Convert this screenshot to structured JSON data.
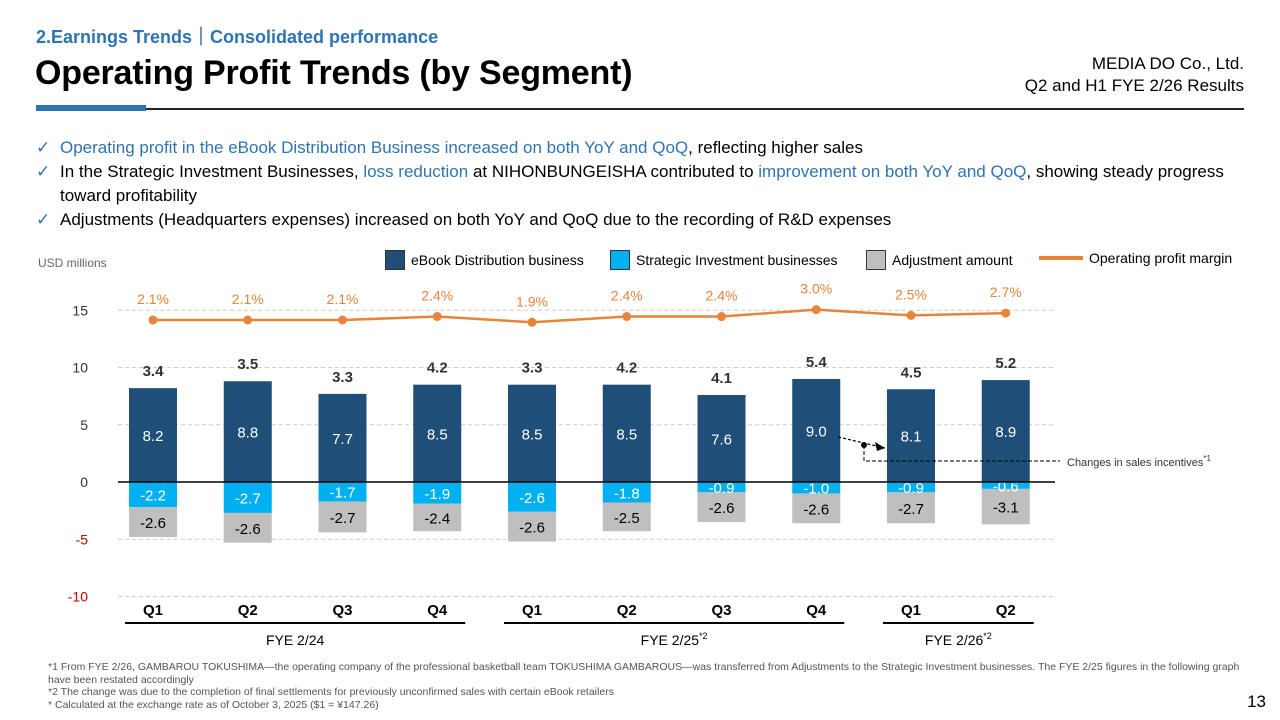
{
  "header": {
    "section": "2.Earnings Trends｜Consolidated performance",
    "title": "Operating Profit Trends (by Segment)",
    "company": "MEDIA DO Co., Ltd.",
    "report": "Q2 and H1 FYE 2/26 Results"
  },
  "bullets": [
    {
      "parts": [
        {
          "text": "Operating profit in the eBook Distribution Business increased on both YoY and QoQ",
          "highlight": true
        },
        {
          "text": ", reflecting higher sales",
          "highlight": false
        }
      ]
    },
    {
      "parts": [
        {
          "text": "In the Strategic Investment Businesses, ",
          "highlight": false
        },
        {
          "text": "loss reduction",
          "highlight": true
        },
        {
          "text": " at NIHONBUNGEISHA contributed to ",
          "highlight": false
        },
        {
          "text": "improvement on both YoY and QoQ",
          "highlight": true
        },
        {
          "text": ", showing steady progress toward profitability",
          "highlight": false
        }
      ]
    },
    {
      "parts": [
        {
          "text": "Adjustments (Headquarters expenses) increased on both YoY and QoQ due to the recording of R&D expenses",
          "highlight": false
        }
      ]
    }
  ],
  "check_icon": "✓",
  "colors": {
    "accent": "#2e74b5",
    "ebook": "#1f4e79",
    "strategic": "#00b0f0",
    "adjustment": "#bfbfbf",
    "margin": "#e8833a",
    "negative_tick": "#c00000"
  },
  "chart_data": {
    "type": "bar",
    "stacked": true,
    "unit_label": "USD millions",
    "categories": [
      "Q1",
      "Q2",
      "Q3",
      "Q4",
      "Q1",
      "Q2",
      "Q3",
      "Q4",
      "Q1",
      "Q2"
    ],
    "groups": [
      {
        "label": "FYE 2/24",
        "sup": "",
        "start": 0,
        "end": 3
      },
      {
        "label": "FYE 2/25",
        "sup": "*2",
        "start": 4,
        "end": 7
      },
      {
        "label": "FYE 2/26",
        "sup": "*2",
        "start": 8,
        "end": 9
      }
    ],
    "series": [
      {
        "name": "eBook Distribution business",
        "key": "ebook",
        "values": [
          8.2,
          8.8,
          7.7,
          8.5,
          8.5,
          8.5,
          7.6,
          9.0,
          8.1,
          8.9
        ]
      },
      {
        "name": "Strategic Investment businesses",
        "key": "strategic",
        "values": [
          -2.2,
          -2.7,
          -1.7,
          -1.9,
          -2.6,
          -1.8,
          -0.9,
          -1.0,
          -0.9,
          -0.6
        ]
      },
      {
        "name": "Adjustment amount",
        "key": "adjustment",
        "values": [
          -2.6,
          -2.6,
          -2.7,
          -2.4,
          -2.6,
          -2.5,
          -2.6,
          -2.6,
          -2.7,
          -3.1
        ]
      }
    ],
    "totals": [
      3.4,
      3.5,
      3.3,
      4.2,
      3.3,
      4.2,
      4.1,
      5.4,
      4.5,
      5.2
    ],
    "line_series": {
      "name": "Operating profit margin",
      "values": [
        2.1,
        2.1,
        2.1,
        2.4,
        1.9,
        2.4,
        2.4,
        3.0,
        2.5,
        2.7
      ],
      "labels": [
        "2.1%",
        "2.1%",
        "2.1%",
        "2.4%",
        "1.9%",
        "2.4%",
        "2.4%",
        "3.0%",
        "2.5%",
        "2.7%"
      ]
    },
    "ylim": [
      -10,
      15
    ],
    "yticks": [
      15,
      10,
      5,
      0,
      -5,
      -10
    ],
    "grid": true,
    "legend_position": "top",
    "annotation": {
      "text": "Changes in sales incentives",
      "sup": "*1",
      "from_index": 7,
      "to_index": 8
    }
  },
  "footnotes": [
    "*1 From FYE 2/26, GAMBAROU TOKUSHIMA—the operating company of the professional basketball team TOKUSHIMA GAMBAROUS—was transferred from Adjustments to the Strategic Investment businesses. The FYE 2/25 figures in the following graph have been restated accordingly",
    "*2 The change was due to the completion of final settlements for previously unconfirmed sales with certain eBook retailers",
    "* Calculated at the exchange rate as of October 3, 2025 ($1 = ¥147.26)"
  ],
  "page_number": "13"
}
